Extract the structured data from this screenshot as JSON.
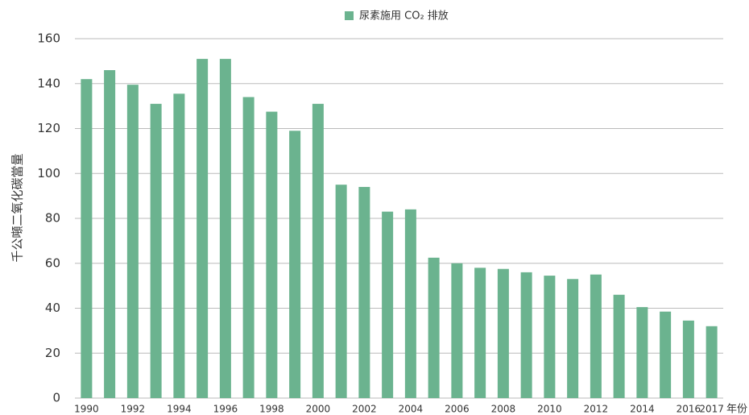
{
  "chart_data": {
    "type": "bar",
    "legend_label": "尿素施用 CO₂ 排放",
    "y_label": "千公噸二氧化碳當量",
    "x_label": "年份",
    "categories": [
      "1990",
      null,
      "1992",
      null,
      "1994",
      null,
      "1996",
      null,
      "1998",
      null,
      "2000",
      null,
      "2002",
      null,
      "2004",
      null,
      "2006",
      null,
      "2008",
      null,
      "2010",
      null,
      "2012",
      null,
      "2014",
      null,
      "2016",
      "2017"
    ],
    "values": [
      142,
      146,
      139.5,
      131,
      135.5,
      151,
      151,
      134,
      127.5,
      119,
      131,
      95,
      94,
      83,
      84,
      62.5,
      60,
      58,
      57.5,
      56,
      54.5,
      53,
      55,
      46,
      40.5,
      38.5,
      34.5,
      32
    ],
    "color": "#6bb38f",
    "ylim": [
      0,
      160
    ],
    "yticks": [
      0,
      20,
      40,
      60,
      80,
      100,
      120,
      140,
      160
    ],
    "grid": true
  }
}
